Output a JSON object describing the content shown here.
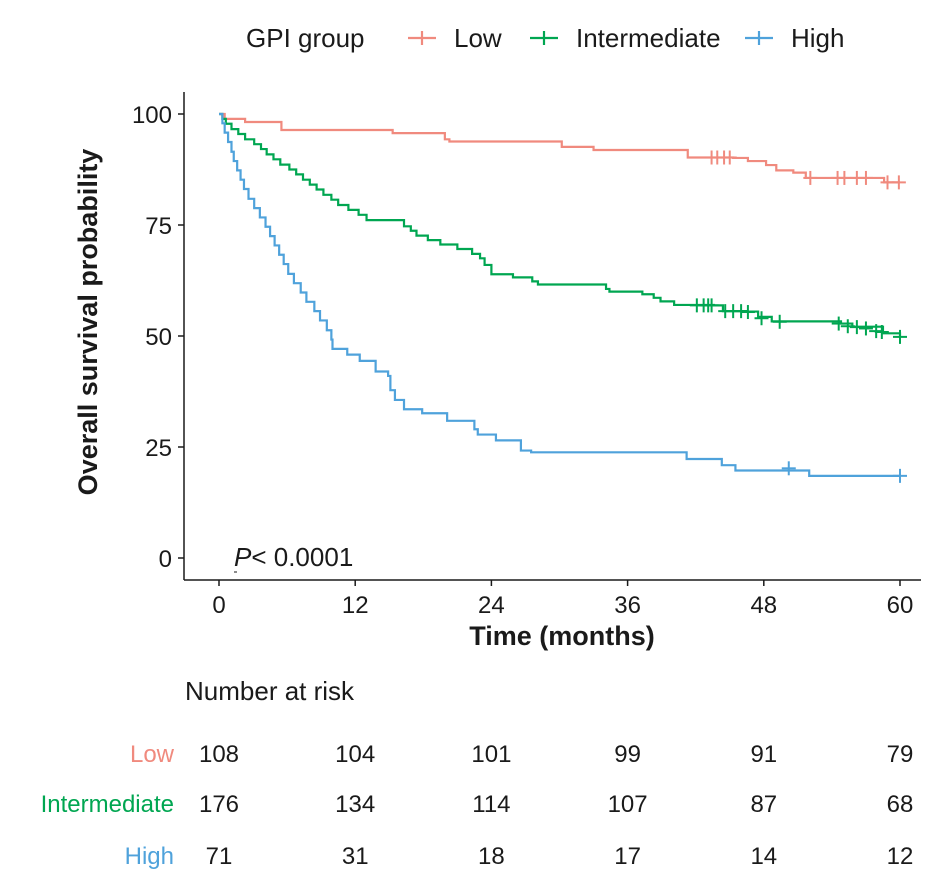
{
  "chart_data": {
    "type": "line",
    "subtype": "kaplan-meier",
    "title": "",
    "xlabel": "Time (months)",
    "ylabel": "Overall survival probability",
    "xlim": [
      0,
      60
    ],
    "ylim": [
      0,
      100
    ],
    "xticks": [
      0,
      12,
      24,
      36,
      48,
      60
    ],
    "yticks": [
      0,
      25,
      50,
      75,
      100
    ],
    "xtick_labels": [
      "0",
      "12",
      "24",
      "36",
      "48",
      "60"
    ],
    "ytick_labels": [
      "0",
      "25",
      "50",
      "75",
      "100"
    ],
    "grid": false,
    "annotation": {
      "italic": "P",
      "text": "< 0.0001"
    },
    "legend": {
      "title": "GPI group",
      "position": "top",
      "entries": [
        "Low",
        "Intermediate",
        "High"
      ]
    },
    "series": [
      {
        "name": "Low",
        "color": "#F08A7E",
        "steps": [
          [
            0,
            100
          ],
          [
            0.5,
            98.9
          ],
          [
            2.3,
            98.2
          ],
          [
            5.5,
            96.4
          ],
          [
            15.3,
            95.7
          ],
          [
            19.9,
            94.3
          ],
          [
            20.3,
            93.8
          ],
          [
            30.2,
            92.6
          ],
          [
            33.0,
            91.9
          ],
          [
            41.3,
            90.2
          ],
          [
            45.3,
            90.1
          ],
          [
            46.6,
            89.4
          ],
          [
            48.2,
            88.5
          ],
          [
            49.1,
            87.3
          ],
          [
            50.6,
            86.8
          ],
          [
            51.7,
            85.6
          ],
          [
            58.6,
            84.6
          ],
          [
            60,
            84.6
          ]
        ],
        "censor": [
          [
            43.4,
            90.2
          ],
          [
            43.9,
            90.2
          ],
          [
            44.5,
            90.2
          ],
          [
            45.0,
            90.2
          ],
          [
            52.1,
            85.6
          ],
          [
            54.5,
            85.6
          ],
          [
            55.1,
            85.6
          ],
          [
            56.2,
            85.6
          ],
          [
            57.0,
            85.6
          ],
          [
            58.9,
            84.6
          ],
          [
            59.9,
            84.6
          ]
        ]
      },
      {
        "name": "Intermediate",
        "color": "#00A651",
        "steps": [
          [
            0,
            100
          ],
          [
            0.3,
            98.9
          ],
          [
            0.6,
            97.8
          ],
          [
            1.1,
            96.6
          ],
          [
            1.7,
            95.5
          ],
          [
            2.3,
            94.3
          ],
          [
            3.1,
            93.2
          ],
          [
            3.7,
            92.1
          ],
          [
            4.2,
            90.9
          ],
          [
            4.8,
            89.8
          ],
          [
            5.4,
            88.6
          ],
          [
            6.2,
            87.5
          ],
          [
            6.8,
            86.4
          ],
          [
            7.4,
            85.2
          ],
          [
            8.0,
            84.1
          ],
          [
            8.6,
            83.0
          ],
          [
            9.2,
            81.8
          ],
          [
            9.9,
            80.7
          ],
          [
            10.5,
            79.5
          ],
          [
            11.4,
            78.4
          ],
          [
            12.3,
            77.3
          ],
          [
            13.0,
            76.1
          ],
          [
            16.3,
            74.7
          ],
          [
            16.9,
            73.7
          ],
          [
            17.4,
            72.6
          ],
          [
            18.4,
            71.6
          ],
          [
            19.5,
            70.6
          ],
          [
            21.0,
            69.6
          ],
          [
            22.3,
            68.5
          ],
          [
            23.0,
            67.5
          ],
          [
            23.4,
            66.0
          ],
          [
            24.0,
            63.9
          ],
          [
            25.9,
            63.2
          ],
          [
            27.6,
            62.3
          ],
          [
            28.1,
            61.6
          ],
          [
            34.1,
            60.6
          ],
          [
            34.4,
            60.0
          ],
          [
            37.3,
            59.4
          ],
          [
            38.3,
            58.6
          ],
          [
            38.9,
            57.8
          ],
          [
            40.1,
            57.0
          ],
          [
            43.6,
            56.9
          ],
          [
            44.4,
            55.6
          ],
          [
            46.5,
            55.5
          ],
          [
            47.5,
            54.3
          ],
          [
            48.7,
            53.3
          ],
          [
            54.8,
            52.8
          ],
          [
            55.8,
            52.1
          ],
          [
            58.5,
            50.6
          ],
          [
            60,
            49.8
          ]
        ],
        "censor": [
          [
            42.1,
            56.9
          ],
          [
            42.7,
            56.9
          ],
          [
            43.1,
            56.9
          ],
          [
            43.4,
            56.9
          ],
          [
            44.6,
            55.6
          ],
          [
            45.3,
            55.6
          ],
          [
            46.0,
            55.6
          ],
          [
            46.6,
            55.4
          ],
          [
            47.8,
            54.0
          ],
          [
            49.4,
            53.2
          ],
          [
            54.6,
            52.8
          ],
          [
            55.4,
            52.2
          ],
          [
            56.2,
            52.0
          ],
          [
            57.0,
            51.7
          ],
          [
            57.9,
            51.1
          ],
          [
            58.4,
            50.9
          ],
          [
            60.0,
            49.8
          ]
        ]
      },
      {
        "name": "High",
        "color": "#4FA2DB",
        "steps": [
          [
            0,
            100
          ],
          [
            0.3,
            97.9
          ],
          [
            0.5,
            95.8
          ],
          [
            0.8,
            93.7
          ],
          [
            1.1,
            91.5
          ],
          [
            1.3,
            89.4
          ],
          [
            1.6,
            87.3
          ],
          [
            1.9,
            85.2
          ],
          [
            2.2,
            83.1
          ],
          [
            2.6,
            80.9
          ],
          [
            3.1,
            78.8
          ],
          [
            3.6,
            76.7
          ],
          [
            4.1,
            74.6
          ],
          [
            4.5,
            72.5
          ],
          [
            4.9,
            70.4
          ],
          [
            5.3,
            68.3
          ],
          [
            5.7,
            66.2
          ],
          [
            6.1,
            64.0
          ],
          [
            6.6,
            61.9
          ],
          [
            7.2,
            59.8
          ],
          [
            7.7,
            57.7
          ],
          [
            8.4,
            55.6
          ],
          [
            8.9,
            53.5
          ],
          [
            9.5,
            51.3
          ],
          [
            9.9,
            49.2
          ],
          [
            10.0,
            47.1
          ],
          [
            11.3,
            45.8
          ],
          [
            12.4,
            44.4
          ],
          [
            13.8,
            42.0
          ],
          [
            14.9,
            41.0
          ],
          [
            15.1,
            37.8
          ],
          [
            15.5,
            35.6
          ],
          [
            16.3,
            33.5
          ],
          [
            17.9,
            32.6
          ],
          [
            20.1,
            30.9
          ],
          [
            22.5,
            29.0
          ],
          [
            22.8,
            27.8
          ],
          [
            24.4,
            26.5
          ],
          [
            26.6,
            24.2
          ],
          [
            27.5,
            23.8
          ],
          [
            41.2,
            22.3
          ],
          [
            44.3,
            20.9
          ],
          [
            45.5,
            19.7
          ],
          [
            52.0,
            18.5
          ],
          [
            60,
            18.5
          ]
        ],
        "censor": [
          [
            50.2,
            20.2
          ],
          [
            60.0,
            18.5
          ]
        ]
      }
    ]
  },
  "risk_table": {
    "title": "Number at risk",
    "times": [
      0,
      12,
      24,
      36,
      48,
      60
    ],
    "rows": [
      {
        "label": "Low",
        "color": "#F08A7E",
        "values": [
          108,
          104,
          101,
          99,
          91,
          79
        ]
      },
      {
        "label": "Intermediate",
        "color": "#00A651",
        "values": [
          176,
          134,
          114,
          107,
          87,
          68
        ]
      },
      {
        "label": "High",
        "color": "#4FA2DB",
        "values": [
          71,
          31,
          18,
          17,
          14,
          12
        ]
      }
    ]
  }
}
